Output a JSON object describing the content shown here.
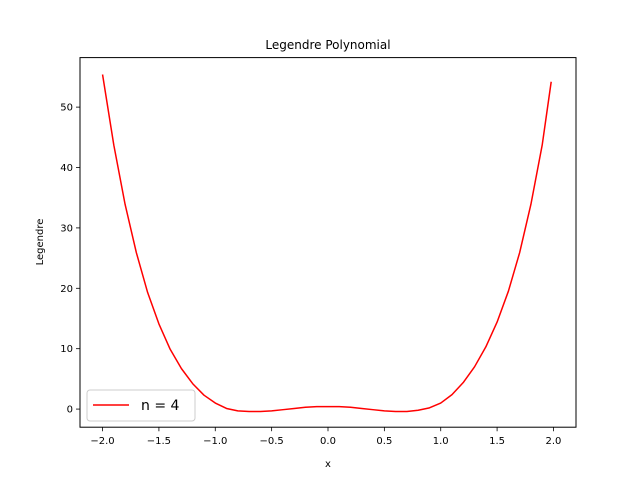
{
  "chart_data": {
    "type": "line",
    "title": "Legendre Polynomial",
    "xlabel": "x",
    "ylabel": "Legendre",
    "xlim": [
      -2.2,
      2.2
    ],
    "ylim": [
      -3.0,
      58.2
    ],
    "xticks": [
      -2.0,
      -1.5,
      -1.0,
      -0.5,
      0.0,
      0.5,
      1.0,
      1.5,
      2.0
    ],
    "xtick_labels": [
      "−2.0",
      "−1.5",
      "−1.0",
      "−0.5",
      "0.0",
      "0.5",
      "1.0",
      "1.5",
      "2.0"
    ],
    "yticks": [
      0,
      10,
      20,
      30,
      40,
      50
    ],
    "ytick_labels": [
      "0",
      "10",
      "20",
      "30",
      "40",
      "50"
    ],
    "grid": false,
    "legend_position": "lower-left",
    "series": [
      {
        "name": "n = 4",
        "color": "#ff0000",
        "x": [
          -2.0,
          -1.9,
          -1.8,
          -1.7,
          -1.6,
          -1.5,
          -1.4,
          -1.3,
          -1.2,
          -1.1,
          -1.0,
          -0.9,
          -0.8,
          -0.7,
          -0.6,
          -0.5,
          -0.4,
          -0.3,
          -0.2,
          -0.1,
          0.0,
          0.1,
          0.2,
          0.3,
          0.4,
          0.5,
          0.6,
          0.7,
          0.8,
          0.9,
          1.0,
          1.1,
          1.2,
          1.3,
          1.4,
          1.5,
          1.6,
          1.7,
          1.8,
          1.9,
          1.98
        ],
        "y": [
          55.4,
          43.7,
          33.9,
          25.9,
          19.3,
          14.1,
          9.9,
          6.7,
          4.2,
          2.3,
          1.0,
          0.1,
          -0.3,
          -0.4,
          -0.4,
          -0.3,
          -0.1,
          0.1,
          0.3,
          0.4,
          0.4,
          0.4,
          0.3,
          0.1,
          -0.1,
          -0.3,
          -0.4,
          -0.4,
          -0.2,
          0.2,
          1.0,
          2.4,
          4.4,
          7.0,
          10.3,
          14.4,
          19.5,
          25.9,
          33.9,
          43.7,
          54.2
        ]
      }
    ]
  }
}
